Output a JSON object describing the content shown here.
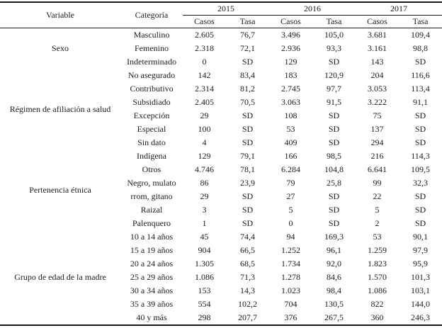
{
  "page": {
    "background": "#ffffff",
    "text_color": "#1c1c1c",
    "rule_color": "#1a1a1a"
  },
  "table": {
    "headers": {
      "variable": "Variable",
      "categoria": "Categoría",
      "years": [
        "2015",
        "2016",
        "2017"
      ],
      "subheaders": [
        "Casos",
        "Tasa"
      ]
    },
    "groups": [
      {
        "variable": "Sexo",
        "rows": [
          {
            "categoria": "Masculino",
            "values": [
              "2.605",
              "76,7",
              "3.496",
              "105,0",
              "3.681",
              "109,4"
            ]
          },
          {
            "categoria": "Femenino",
            "values": [
              "2.318",
              "72,1",
              "2.936",
              "93,3",
              "3.161",
              "98,8"
            ]
          },
          {
            "categoria": "Indeterminado",
            "values": [
              "0",
              "SD",
              "129",
              "SD",
              "143",
              "SD"
            ]
          }
        ]
      },
      {
        "variable": "Régimen de afiliación a salud",
        "rows": [
          {
            "categoria": "No asegurado",
            "values": [
              "142",
              "83,4",
              "183",
              "120,9",
              "204",
              "116,6"
            ]
          },
          {
            "categoria": "Contributivo",
            "values": [
              "2.314",
              "81,2",
              "2.745",
              "97,7",
              "3.053",
              "113,4"
            ]
          },
          {
            "categoria": "Subsidiado",
            "values": [
              "2.405",
              "70,5",
              "3.063",
              "91,5",
              "3.222",
              "91,1"
            ]
          },
          {
            "categoria": "Excepción",
            "values": [
              "29",
              "SD",
              "108",
              "SD",
              "75",
              "SD"
            ]
          },
          {
            "categoria": "Especial",
            "values": [
              "100",
              "SD",
              "53",
              "SD",
              "137",
              "SD"
            ]
          },
          {
            "categoria": "Sin dato",
            "values": [
              "4",
              "SD",
              "409",
              "SD",
              "294",
              "SD"
            ]
          }
        ]
      },
      {
        "variable": "Pertenencia étnica",
        "rows": [
          {
            "categoria": "Indígena",
            "values": [
              "129",
              "79,1",
              "166",
              "98,5",
              "216",
              "114,3"
            ]
          },
          {
            "categoria": "Otros",
            "values": [
              "4.746",
              "78,1",
              "6.284",
              "104,8",
              "6.641",
              "109,5"
            ]
          },
          {
            "categoria": "Negro, mulato",
            "values": [
              "86",
              "23,9",
              "79",
              "25,8",
              "99",
              "32,3"
            ]
          },
          {
            "categoria": "rrom, gitano",
            "values": [
              "29",
              "SD",
              "27",
              "SD",
              "22",
              "SD"
            ]
          },
          {
            "categoria": "Raizal",
            "values": [
              "3",
              "SD",
              "5",
              "SD",
              "5",
              "SD"
            ]
          },
          {
            "categoria": "Palenquero",
            "values": [
              "1",
              "SD",
              "0",
              "SD",
              "2",
              "SD"
            ]
          }
        ]
      },
      {
        "variable": "Grupo de edad de la madre",
        "rows": [
          {
            "categoria": "10 a 14 años",
            "values": [
              "45",
              "74,4",
              "94",
              "169,3",
              "53",
              "90,1"
            ]
          },
          {
            "categoria": "15 a 19 años",
            "values": [
              "904",
              "66,5",
              "1.252",
              "96,1",
              "1.259",
              "97,9"
            ]
          },
          {
            "categoria": "20 a 24 años",
            "values": [
              "1.305",
              "68,5",
              "1.734",
              "92,0",
              "1.823",
              "95,9"
            ]
          },
          {
            "categoria": "25 a 29 años",
            "values": [
              "1.086",
              "71,3",
              "1.278",
              "84,6",
              "1.570",
              "101,3"
            ]
          },
          {
            "categoria": "30 a 34 años",
            "values": [
              "153",
              "14,3",
              "1.023",
              "98,4",
              "1.086",
              "103,1"
            ]
          },
          {
            "categoria": "35 a 39 años",
            "values": [
              "554",
              "102,2",
              "704",
              "130,5",
              "822",
              "144,0"
            ]
          },
          {
            "categoria": "40 y más",
            "values": [
              "298",
              "207,7",
              "376",
              "267,5",
              "360",
              "246,3"
            ]
          }
        ]
      }
    ]
  }
}
